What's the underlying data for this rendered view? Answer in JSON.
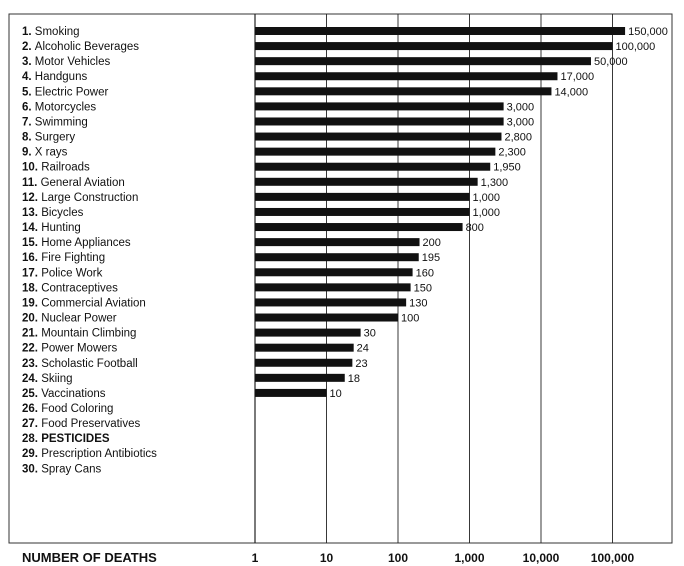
{
  "chart_data": {
    "type": "bar",
    "orientation": "horizontal",
    "x_scale": "log",
    "xlim": [
      1,
      100000
    ],
    "xlabel": "NUMBER OF DEATHS",
    "x_ticks": [
      "1",
      "10",
      "100",
      "1,000",
      "10,000",
      "100,000"
    ],
    "grid": "vertical",
    "categories": [
      {
        "rank": "1.",
        "name": "Smoking",
        "value": 150000,
        "label": "150,000"
      },
      {
        "rank": "2.",
        "name": "Alcoholic Beverages",
        "value": 100000,
        "label": "100,000"
      },
      {
        "rank": "3.",
        "name": "Motor Vehicles",
        "value": 50000,
        "label": "50,000"
      },
      {
        "rank": "4.",
        "name": "Handguns",
        "value": 17000,
        "label": "17,000"
      },
      {
        "rank": "5.",
        "name": "Electric Power",
        "value": 14000,
        "label": "14,000"
      },
      {
        "rank": "6.",
        "name": "Motorcycles",
        "value": 3000,
        "label": "3,000"
      },
      {
        "rank": "7.",
        "name": "Swimming",
        "value": 3000,
        "label": "3,000"
      },
      {
        "rank": "8.",
        "name": "Surgery",
        "value": 2800,
        "label": "2,800"
      },
      {
        "rank": "9.",
        "name": "X rays",
        "value": 2300,
        "label": "2,300"
      },
      {
        "rank": "10.",
        "name": "Railroads",
        "value": 1950,
        "label": "1,950"
      },
      {
        "rank": "11.",
        "name": "General Aviation",
        "value": 1300,
        "label": "1,300"
      },
      {
        "rank": "12.",
        "name": "Large Construction",
        "value": 1000,
        "label": "1,000"
      },
      {
        "rank": "13.",
        "name": "Bicycles",
        "value": 1000,
        "label": "1,000"
      },
      {
        "rank": "14.",
        "name": "Hunting",
        "value": 800,
        "label": "800"
      },
      {
        "rank": "15.",
        "name": "Home Appliances",
        "value": 200,
        "label": "200"
      },
      {
        "rank": "16.",
        "name": "Fire Fighting",
        "value": 195,
        "label": "195"
      },
      {
        "rank": "17.",
        "name": "Police Work",
        "value": 160,
        "label": "160"
      },
      {
        "rank": "18.",
        "name": "Contraceptives",
        "value": 150,
        "label": "150"
      },
      {
        "rank": "19.",
        "name": "Commercial Aviation",
        "value": 130,
        "label": "130"
      },
      {
        "rank": "20.",
        "name": "Nuclear Power",
        "value": 100,
        "label": "100"
      },
      {
        "rank": "21.",
        "name": "Mountain Climbing",
        "value": 30,
        "label": "30"
      },
      {
        "rank": "22.",
        "name": "Power Mowers",
        "value": 24,
        "label": "24"
      },
      {
        "rank": "23.",
        "name": "Scholastic Football",
        "value": 23,
        "label": "23"
      },
      {
        "rank": "24.",
        "name": "Skiing",
        "value": 18,
        "label": "18"
      },
      {
        "rank": "25.",
        "name": "Vaccinations",
        "value": 10,
        "label": "10"
      },
      {
        "rank": "26.",
        "name": "Food Coloring",
        "value": null,
        "label": ""
      },
      {
        "rank": "27.",
        "name": "Food Preservatives",
        "value": null,
        "label": ""
      },
      {
        "rank": "28.",
        "name": "PESTICIDES",
        "value": null,
        "label": "",
        "emphasis": true
      },
      {
        "rank": "29.",
        "name": "Prescription Antibiotics",
        "value": null,
        "label": ""
      },
      {
        "rank": "30.",
        "name": "Spray Cans",
        "value": null,
        "label": ""
      }
    ],
    "bar_color": "#111111",
    "frame_color": "#333333"
  }
}
